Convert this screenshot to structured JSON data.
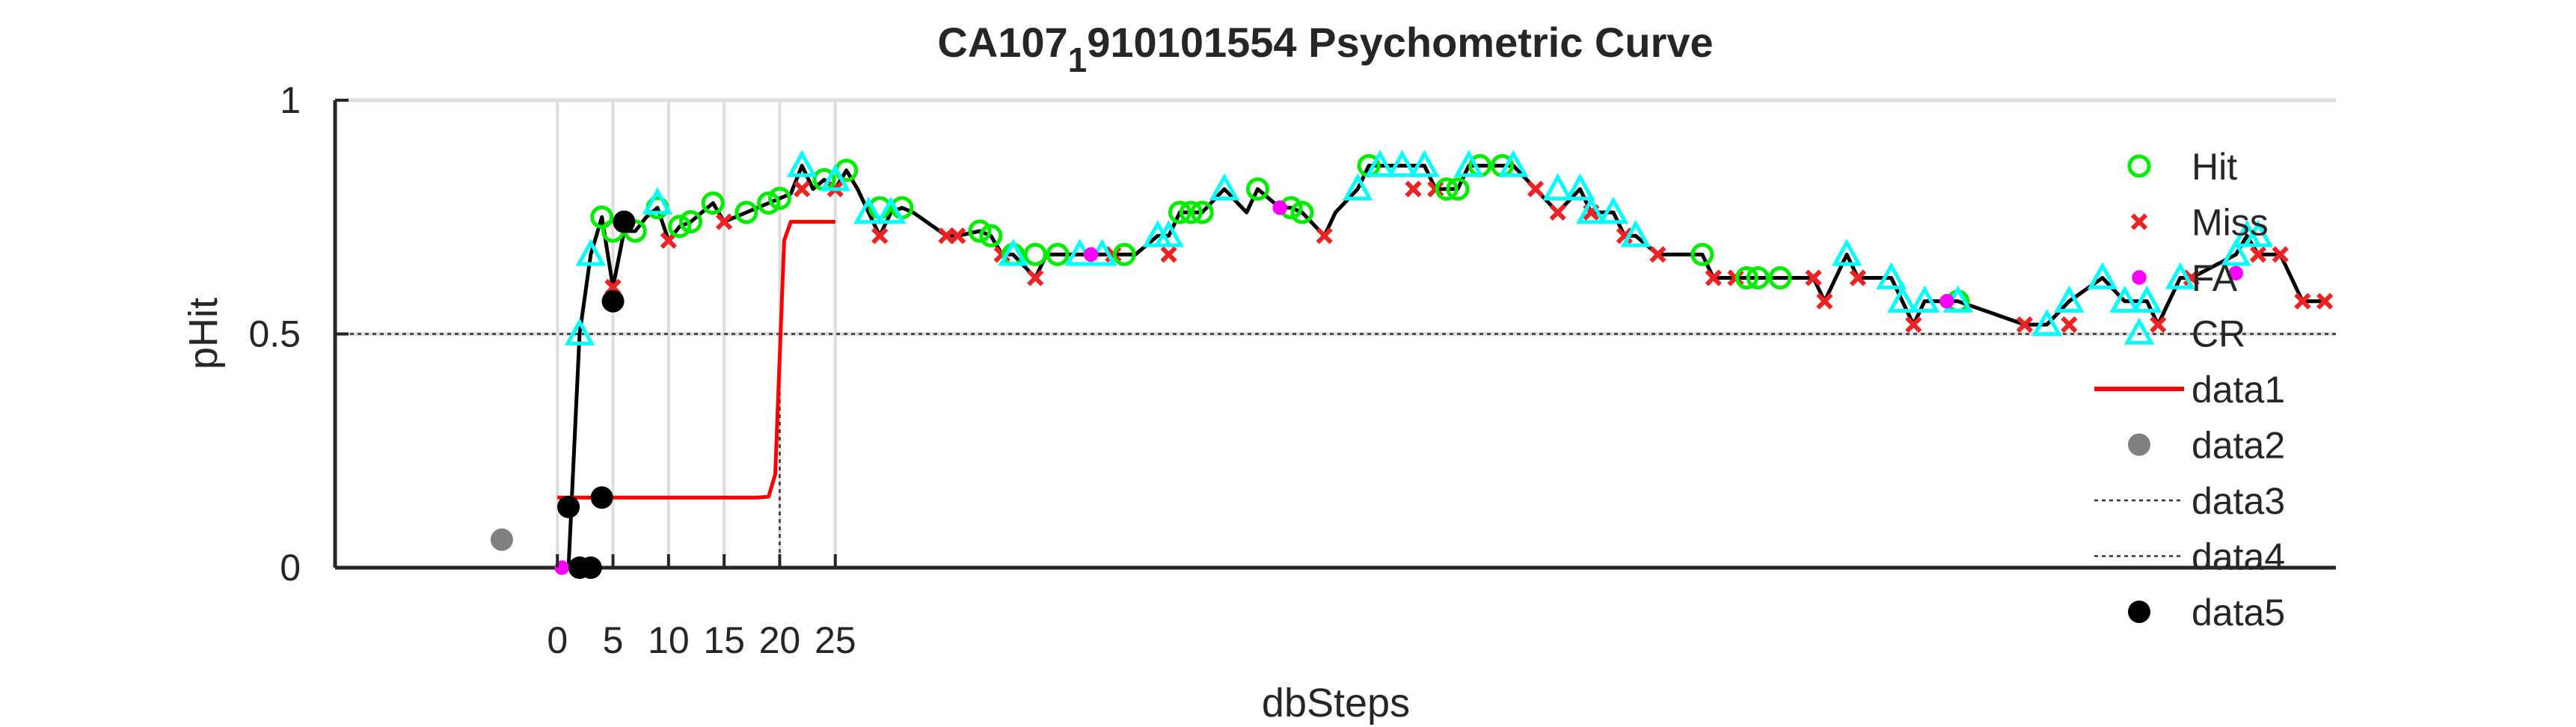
{
  "chart_data": {
    "type": "scatter",
    "title": {
      "main": "CA107",
      "subscript": "1",
      "rest": "910101554 Psychometric Curve"
    },
    "xlabel": "dbSteps",
    "ylabel": "pHit",
    "xlim": [
      -20,
      160
    ],
    "ylim": [
      0,
      1
    ],
    "x_ticks": [
      0,
      5,
      10,
      15,
      20,
      25
    ],
    "x_tick_labels": [
      "0",
      "5",
      "10",
      "15",
      "20",
      "25"
    ],
    "y_ticks": [
      0,
      0.5,
      1
    ],
    "y_tick_labels": [
      "0",
      "0.5",
      "1"
    ],
    "grid": "on",
    "legend_position": "right",
    "legend": [
      "Hit",
      "Miss",
      "FA",
      "CR",
      "data1",
      "data2",
      "data3",
      "data4",
      "data5"
    ],
    "colors": {
      "hit": "#00ee00",
      "miss": "#ee2222",
      "fa": "#ff00ff",
      "cr": "#00ffff",
      "data1": "#ff0000",
      "data2": "#808080",
      "data5": "#000000",
      "curve": "#000000",
      "grid": "#dddddd"
    },
    "series": [
      {
        "name": "Hit",
        "marker": "circle",
        "points": [
          [
            4,
            0.75
          ],
          [
            5,
            0.72
          ],
          [
            7,
            0.72
          ],
          [
            9,
            0.77
          ],
          [
            11,
            0.73
          ],
          [
            12,
            0.74
          ],
          [
            14,
            0.78
          ],
          [
            17,
            0.76
          ],
          [
            19,
            0.78
          ],
          [
            20,
            0.79
          ],
          [
            24,
            0.83
          ],
          [
            26,
            0.85
          ],
          [
            29,
            0.77
          ],
          [
            31,
            0.77
          ],
          [
            38,
            0.72
          ],
          [
            39,
            0.71
          ],
          [
            41,
            0.67
          ],
          [
            43,
            0.67
          ],
          [
            45,
            0.67
          ],
          [
            51,
            0.67
          ],
          [
            56,
            0.76
          ],
          [
            57,
            0.76
          ],
          [
            58,
            0.76
          ],
          [
            63,
            0.81
          ],
          [
            66,
            0.77
          ],
          [
            67,
            0.76
          ],
          [
            73,
            0.86
          ],
          [
            80,
            0.81
          ],
          [
            81,
            0.81
          ],
          [
            83,
            0.86
          ],
          [
            85,
            0.86
          ],
          [
            103,
            0.67
          ],
          [
            107,
            0.62
          ],
          [
            108,
            0.62
          ],
          [
            110,
            0.62
          ],
          [
            126,
            0.57
          ]
        ]
      },
      {
        "name": "Miss",
        "marker": "x",
        "points": [
          [
            5,
            0.6
          ],
          [
            10,
            0.7
          ],
          [
            15,
            0.74
          ],
          [
            22,
            0.81
          ],
          [
            25,
            0.81
          ],
          [
            29,
            0.71
          ],
          [
            35,
            0.71
          ],
          [
            36,
            0.71
          ],
          [
            40,
            0.67
          ],
          [
            43,
            0.62
          ],
          [
            50,
            0.67
          ],
          [
            55,
            0.67
          ],
          [
            69,
            0.71
          ],
          [
            77,
            0.81
          ],
          [
            79,
            0.81
          ],
          [
            88,
            0.81
          ],
          [
            90,
            0.76
          ],
          [
            93,
            0.76
          ],
          [
            96,
            0.71
          ],
          [
            99,
            0.67
          ],
          [
            104,
            0.62
          ],
          [
            106,
            0.62
          ],
          [
            113,
            0.62
          ],
          [
            114,
            0.57
          ],
          [
            117,
            0.62
          ],
          [
            122,
            0.52
          ],
          [
            132,
            0.52
          ],
          [
            136,
            0.52
          ],
          [
            144,
            0.52
          ],
          [
            147,
            0.62
          ],
          [
            153,
            0.67
          ],
          [
            155,
            0.67
          ],
          [
            157,
            0.57
          ],
          [
            159,
            0.57
          ]
        ]
      },
      {
        "name": "FA",
        "marker": "filled-circle",
        "points": [
          [
            0.4,
            0.0
          ],
          [
            48,
            0.67
          ],
          [
            65,
            0.77
          ],
          [
            125,
            0.57
          ],
          [
            151,
            0.63
          ]
        ]
      },
      {
        "name": "CR",
        "marker": "triangle",
        "points": [
          [
            2,
            0.5
          ],
          [
            3,
            0.67
          ],
          [
            9,
            0.78
          ],
          [
            22,
            0.86
          ],
          [
            25,
            0.83
          ],
          [
            28,
            0.76
          ],
          [
            30,
            0.76
          ],
          [
            41,
            0.67
          ],
          [
            47,
            0.67
          ],
          [
            49,
            0.67
          ],
          [
            54,
            0.71
          ],
          [
            55,
            0.71
          ],
          [
            60,
            0.81
          ],
          [
            72,
            0.81
          ],
          [
            74,
            0.86
          ],
          [
            76,
            0.86
          ],
          [
            78,
            0.86
          ],
          [
            82,
            0.86
          ],
          [
            86,
            0.86
          ],
          [
            90,
            0.81
          ],
          [
            92,
            0.81
          ],
          [
            93,
            0.76
          ],
          [
            95,
            0.76
          ],
          [
            97,
            0.71
          ],
          [
            116,
            0.67
          ],
          [
            120,
            0.62
          ],
          [
            121,
            0.57
          ],
          [
            123,
            0.57
          ],
          [
            126,
            0.57
          ],
          [
            134,
            0.52
          ],
          [
            136,
            0.57
          ],
          [
            139,
            0.62
          ],
          [
            141,
            0.57
          ],
          [
            143,
            0.57
          ],
          [
            146,
            0.62
          ],
          [
            151,
            0.67
          ],
          [
            152,
            0.71
          ],
          [
            153,
            0.71
          ]
        ]
      },
      {
        "name": "data1",
        "type": "line",
        "points": [
          [
            0,
            0.15
          ],
          [
            1,
            0.15
          ],
          [
            2,
            0.15
          ],
          [
            3,
            0.15
          ],
          [
            4,
            0.15
          ],
          [
            5,
            0.15
          ],
          [
            6,
            0.15
          ],
          [
            7,
            0.15
          ],
          [
            8,
            0.15
          ],
          [
            9,
            0.15
          ],
          [
            10,
            0.15
          ],
          [
            11,
            0.15
          ],
          [
            12,
            0.15
          ],
          [
            13,
            0.15
          ],
          [
            14,
            0.15
          ],
          [
            15,
            0.15
          ],
          [
            16,
            0.15
          ],
          [
            17,
            0.15
          ],
          [
            18,
            0.15
          ],
          [
            19,
            0.152
          ],
          [
            19.6,
            0.2
          ],
          [
            20,
            0.45
          ],
          [
            20.4,
            0.7
          ],
          [
            21,
            0.74
          ],
          [
            22,
            0.74
          ],
          [
            23,
            0.74
          ],
          [
            24,
            0.74
          ],
          [
            25,
            0.74
          ]
        ]
      },
      {
        "name": "data2",
        "marker": "filled-circle",
        "points": [
          [
            -5,
            0.06
          ]
        ]
      },
      {
        "name": "data3",
        "type": "dotted-line",
        "points": [
          [
            -20,
            0.5
          ],
          [
            160,
            0.5
          ]
        ]
      },
      {
        "name": "data4",
        "type": "dotted-line",
        "points": [
          [
            20,
            0
          ],
          [
            20,
            0.5
          ]
        ]
      },
      {
        "name": "data5",
        "marker": "filled-circle",
        "points": [
          [
            1,
            0.13
          ],
          [
            2,
            0.0
          ],
          [
            3,
            0.0
          ],
          [
            4,
            0.15
          ],
          [
            5,
            0.57
          ],
          [
            6,
            0.74
          ]
        ]
      },
      {
        "name": "running-curve",
        "type": "line",
        "points": [
          [
            1,
            0.0
          ],
          [
            2,
            0.5
          ],
          [
            3,
            0.67
          ],
          [
            4,
            0.75
          ],
          [
            5,
            0.6
          ],
          [
            6,
            0.72
          ],
          [
            7,
            0.72
          ],
          [
            8,
            0.75
          ],
          [
            9,
            0.77
          ],
          [
            10,
            0.7
          ],
          [
            11,
            0.73
          ],
          [
            12,
            0.74
          ],
          [
            13,
            0.76
          ],
          [
            14,
            0.78
          ],
          [
            15,
            0.74
          ],
          [
            16,
            0.75
          ],
          [
            17,
            0.76
          ],
          [
            18,
            0.77
          ],
          [
            19,
            0.78
          ],
          [
            20,
            0.79
          ],
          [
            21,
            0.8
          ],
          [
            22,
            0.86
          ],
          [
            23,
            0.81
          ],
          [
            24,
            0.83
          ],
          [
            25,
            0.81
          ],
          [
            26,
            0.85
          ],
          [
            27,
            0.81
          ],
          [
            28,
            0.76
          ],
          [
            29,
            0.71
          ],
          [
            30,
            0.76
          ],
          [
            31,
            0.77
          ],
          [
            32,
            0.76
          ],
          [
            35,
            0.71
          ],
          [
            36,
            0.71
          ],
          [
            38,
            0.72
          ],
          [
            39,
            0.71
          ],
          [
            40,
            0.67
          ],
          [
            41,
            0.67
          ],
          [
            43,
            0.62
          ],
          [
            44,
            0.67
          ],
          [
            45,
            0.67
          ],
          [
            47,
            0.67
          ],
          [
            49,
            0.67
          ],
          [
            50,
            0.67
          ],
          [
            51,
            0.67
          ],
          [
            52,
            0.67
          ],
          [
            54,
            0.71
          ],
          [
            55,
            0.71
          ],
          [
            56,
            0.76
          ],
          [
            57,
            0.76
          ],
          [
            58,
            0.76
          ],
          [
            60,
            0.81
          ],
          [
            62,
            0.76
          ],
          [
            63,
            0.81
          ],
          [
            65,
            0.77
          ],
          [
            66,
            0.77
          ],
          [
            67,
            0.76
          ],
          [
            69,
            0.71
          ],
          [
            70,
            0.76
          ],
          [
            72,
            0.81
          ],
          [
            73,
            0.86
          ],
          [
            74,
            0.86
          ],
          [
            76,
            0.86
          ],
          [
            78,
            0.86
          ],
          [
            79,
            0.81
          ],
          [
            80,
            0.81
          ],
          [
            81,
            0.81
          ],
          [
            82,
            0.86
          ],
          [
            83,
            0.86
          ],
          [
            85,
            0.86
          ],
          [
            86,
            0.86
          ],
          [
            88,
            0.81
          ],
          [
            90,
            0.76
          ],
          [
            92,
            0.81
          ],
          [
            93,
            0.76
          ],
          [
            95,
            0.76
          ],
          [
            96,
            0.71
          ],
          [
            97,
            0.71
          ],
          [
            99,
            0.67
          ],
          [
            103,
            0.67
          ],
          [
            104,
            0.62
          ],
          [
            106,
            0.62
          ],
          [
            107,
            0.62
          ],
          [
            108,
            0.62
          ],
          [
            110,
            0.62
          ],
          [
            113,
            0.62
          ],
          [
            114,
            0.57
          ],
          [
            116,
            0.67
          ],
          [
            117,
            0.62
          ],
          [
            120,
            0.62
          ],
          [
            121,
            0.57
          ],
          [
            122,
            0.52
          ],
          [
            123,
            0.57
          ],
          [
            125,
            0.57
          ],
          [
            126,
            0.57
          ],
          [
            132,
            0.52
          ],
          [
            134,
            0.52
          ],
          [
            136,
            0.57
          ],
          [
            139,
            0.62
          ],
          [
            141,
            0.57
          ],
          [
            143,
            0.57
          ],
          [
            144,
            0.52
          ],
          [
            146,
            0.62
          ],
          [
            147,
            0.62
          ],
          [
            151,
            0.67
          ],
          [
            152,
            0.71
          ],
          [
            153,
            0.67
          ],
          [
            155,
            0.67
          ],
          [
            157,
            0.57
          ],
          [
            159,
            0.57
          ]
        ]
      }
    ]
  }
}
